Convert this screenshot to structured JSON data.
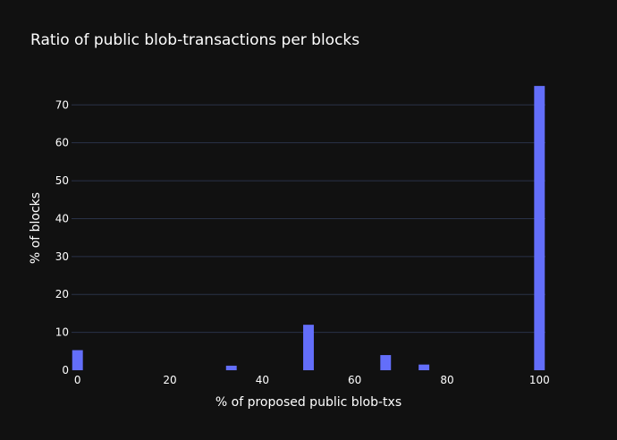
{
  "chart_data": {
    "type": "bar",
    "title": "Ratio of public blob-transactions per blocks",
    "xlabel": "% of proposed public blob-txs",
    "ylabel": "% of blocks",
    "xlim": [
      -1.3,
      101.3
    ],
    "ylim": [
      0,
      78.8
    ],
    "grid": true,
    "xticks": [
      0,
      20,
      40,
      60,
      80,
      100
    ],
    "yticks": [
      0,
      10,
      20,
      30,
      40,
      50,
      60,
      70
    ],
    "bin_width": 2.5,
    "bars": [
      {
        "x": 0,
        "value": 5.3
      },
      {
        "x": 33.3,
        "value": 1.2
      },
      {
        "x": 50,
        "value": 12.0
      },
      {
        "x": 66.7,
        "value": 4.0
      },
      {
        "x": 75,
        "value": 1.5
      },
      {
        "x": 100,
        "value": 75.0
      }
    ],
    "colors": {
      "bar": "#636efa",
      "background": "#111111",
      "grid": "#2a3248",
      "text": "#ffffff"
    }
  }
}
